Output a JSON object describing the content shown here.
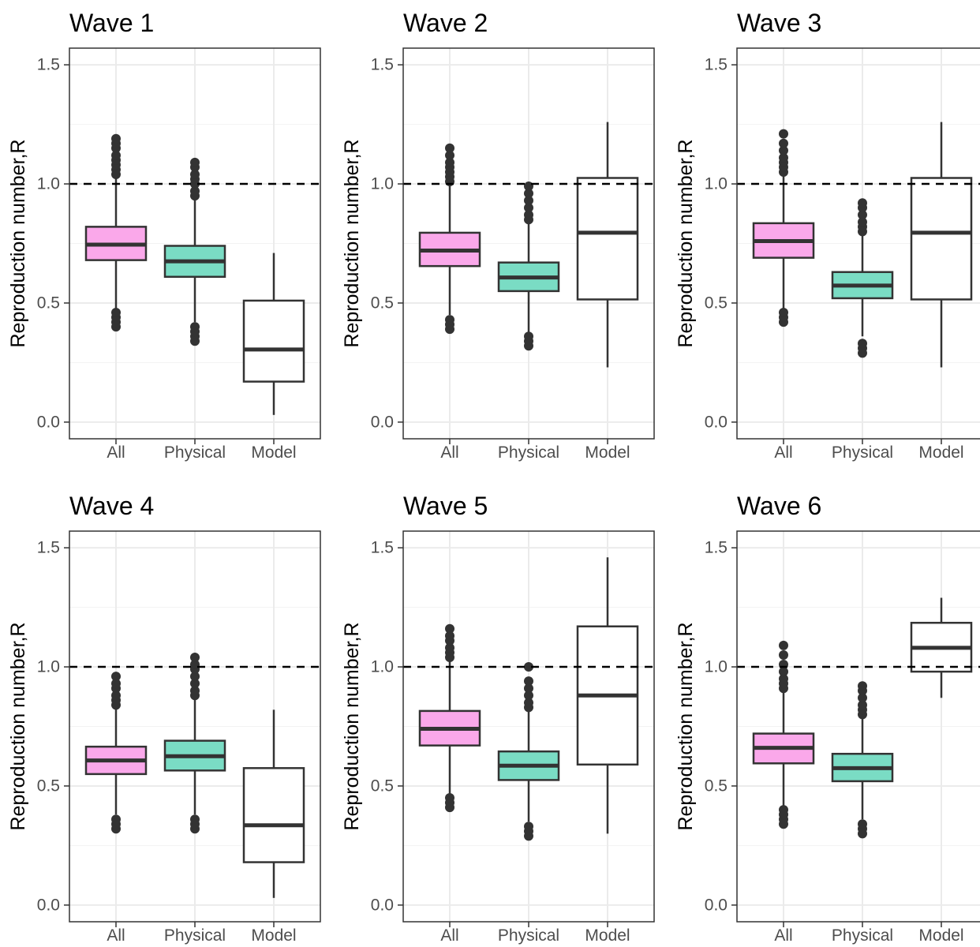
{
  "chart_data": [
    {
      "type": "box",
      "title": "Wave 1",
      "ylabel": "Reproduction number,R",
      "categories": [
        "All",
        "Physical",
        "Model"
      ],
      "yticks": [
        "0.0",
        "0.5",
        "1.0",
        "1.5"
      ],
      "ylim": [
        -0.07,
        1.57
      ],
      "reference_line": 1.0,
      "boxes": [
        {
          "category": "All",
          "color": "#FAA8EA",
          "q1": 0.68,
          "median": 0.745,
          "q3": 0.82,
          "whisker_low": 0.47,
          "whisker_high": 1.03,
          "outliers": [
            0.4,
            0.42,
            0.44,
            0.46,
            1.04,
            1.06,
            1.08,
            1.1,
            1.12,
            1.15,
            1.17,
            1.19
          ]
        },
        {
          "category": "Physical",
          "color": "#7ADCC4",
          "q1": 0.61,
          "median": 0.675,
          "q3": 0.74,
          "whisker_low": 0.42,
          "whisker_high": 0.94,
          "outliers": [
            0.34,
            0.36,
            0.38,
            0.4,
            0.95,
            0.97,
            1.0,
            1.02,
            1.04,
            1.07,
            1.09
          ]
        },
        {
          "category": "Model",
          "color": "#FFFFFF",
          "q1": 0.17,
          "median": 0.305,
          "q3": 0.51,
          "whisker_low": 0.03,
          "whisker_high": 0.71,
          "outliers": []
        }
      ]
    },
    {
      "type": "box",
      "title": "Wave 2",
      "ylabel": "Reproduction number,R",
      "categories": [
        "All",
        "Physical",
        "Model"
      ],
      "yticks": [
        "0.0",
        "0.5",
        "1.0",
        "1.5"
      ],
      "ylim": [
        -0.07,
        1.57
      ],
      "reference_line": 1.0,
      "boxes": [
        {
          "category": "All",
          "color": "#FAA8EA",
          "q1": 0.655,
          "median": 0.72,
          "q3": 0.795,
          "whisker_low": 0.45,
          "whisker_high": 1.0,
          "outliers": [
            0.39,
            0.41,
            0.43,
            1.01,
            1.03,
            1.05,
            1.07,
            1.09,
            1.12,
            1.15
          ]
        },
        {
          "category": "Physical",
          "color": "#7ADCC4",
          "q1": 0.55,
          "median": 0.607,
          "q3": 0.67,
          "whisker_low": 0.37,
          "whisker_high": 0.84,
          "outliers": [
            0.32,
            0.34,
            0.36,
            0.85,
            0.87,
            0.9,
            0.93,
            0.96,
            0.99
          ]
        },
        {
          "category": "Model",
          "color": "#FFFFFF",
          "q1": 0.515,
          "median": 0.795,
          "q3": 1.025,
          "whisker_low": 0.23,
          "whisker_high": 1.26,
          "outliers": []
        }
      ]
    },
    {
      "type": "box",
      "title": "Wave 3",
      "ylabel": "Reproduction number,R",
      "categories": [
        "All",
        "Physical",
        "Model"
      ],
      "yticks": [
        "0.0",
        "0.5",
        "1.0",
        "1.5"
      ],
      "ylim": [
        -0.07,
        1.57
      ],
      "reference_line": 1.0,
      "boxes": [
        {
          "category": "All",
          "color": "#FAA8EA",
          "q1": 0.69,
          "median": 0.76,
          "q3": 0.835,
          "whisker_low": 0.47,
          "whisker_high": 1.04,
          "outliers": [
            0.42,
            0.44,
            0.46,
            1.05,
            1.07,
            1.09,
            1.11,
            1.14,
            1.17,
            1.21
          ]
        },
        {
          "category": "Physical",
          "color": "#7ADCC4",
          "q1": 0.52,
          "median": 0.573,
          "q3": 0.63,
          "whisker_low": 0.36,
          "whisker_high": 0.79,
          "outliers": [
            0.29,
            0.31,
            0.33,
            0.8,
            0.82,
            0.84,
            0.87,
            0.9,
            0.92
          ]
        },
        {
          "category": "Model",
          "color": "#FFFFFF",
          "q1": 0.515,
          "median": 0.795,
          "q3": 1.025,
          "whisker_low": 0.23,
          "whisker_high": 1.26,
          "outliers": []
        }
      ]
    },
    {
      "type": "box",
      "title": "Wave 4",
      "ylabel": "Reproduction number,R",
      "categories": [
        "All",
        "Physical",
        "Model"
      ],
      "yticks": [
        "0.0",
        "0.5",
        "1.0",
        "1.5"
      ],
      "ylim": [
        -0.07,
        1.57
      ],
      "reference_line": 1.0,
      "boxes": [
        {
          "category": "All",
          "color": "#FAA8EA",
          "q1": 0.55,
          "median": 0.607,
          "q3": 0.665,
          "whisker_low": 0.38,
          "whisker_high": 0.83,
          "outliers": [
            0.32,
            0.34,
            0.36,
            0.84,
            0.86,
            0.88,
            0.91,
            0.93,
            0.96
          ]
        },
        {
          "category": "Physical",
          "color": "#7ADCC4",
          "q1": 0.565,
          "median": 0.625,
          "q3": 0.69,
          "whisker_low": 0.38,
          "whisker_high": 0.87,
          "outliers": [
            0.32,
            0.34,
            0.36,
            0.88,
            0.9,
            0.93,
            0.96,
            0.99,
            1.01,
            1.04
          ]
        },
        {
          "category": "Model",
          "color": "#FFFFFF",
          "q1": 0.18,
          "median": 0.335,
          "q3": 0.575,
          "whisker_low": 0.03,
          "whisker_high": 0.82,
          "outliers": []
        }
      ]
    },
    {
      "type": "box",
      "title": "Wave 5",
      "ylabel": "Reproduction number,R",
      "categories": [
        "All",
        "Physical",
        "Model"
      ],
      "yticks": [
        "0.0",
        "0.5",
        "1.0",
        "1.5"
      ],
      "ylim": [
        -0.07,
        1.57
      ],
      "reference_line": 1.0,
      "boxes": [
        {
          "category": "All",
          "color": "#FAA8EA",
          "q1": 0.67,
          "median": 0.74,
          "q3": 0.815,
          "whisker_low": 0.46,
          "whisker_high": 1.03,
          "outliers": [
            0.41,
            0.43,
            0.45,
            1.04,
            1.06,
            1.08,
            1.11,
            1.13,
            1.16
          ]
        },
        {
          "category": "Physical",
          "color": "#7ADCC4",
          "q1": 0.525,
          "median": 0.585,
          "q3": 0.645,
          "whisker_low": 0.35,
          "whisker_high": 0.82,
          "outliers": [
            0.29,
            0.31,
            0.33,
            0.83,
            0.85,
            0.88,
            0.91,
            0.94,
            1.0
          ]
        },
        {
          "category": "Model",
          "color": "#FFFFFF",
          "q1": 0.59,
          "median": 0.88,
          "q3": 1.17,
          "whisker_low": 0.3,
          "whisker_high": 1.46,
          "outliers": []
        }
      ]
    },
    {
      "type": "box",
      "title": "Wave 6",
      "ylabel": "Reproduction number,R",
      "categories": [
        "All",
        "Physical",
        "Model"
      ],
      "yticks": [
        "0.0",
        "0.5",
        "1.0",
        "1.5"
      ],
      "ylim": [
        -0.07,
        1.57
      ],
      "reference_line": 1.0,
      "boxes": [
        {
          "category": "All",
          "color": "#FAA8EA",
          "q1": 0.595,
          "median": 0.66,
          "q3": 0.72,
          "whisker_low": 0.41,
          "whisker_high": 0.9,
          "outliers": [
            0.34,
            0.36,
            0.38,
            0.4,
            0.91,
            0.93,
            0.95,
            0.98,
            1.01,
            1.05,
            1.09
          ]
        },
        {
          "category": "Physical",
          "color": "#7ADCC4",
          "q1": 0.52,
          "median": 0.575,
          "q3": 0.635,
          "whisker_low": 0.36,
          "whisker_high": 0.79,
          "outliers": [
            0.3,
            0.32,
            0.34,
            0.8,
            0.82,
            0.84,
            0.87,
            0.9,
            0.92
          ]
        },
        {
          "category": "Model",
          "color": "#FFFFFF",
          "q1": 0.98,
          "median": 1.08,
          "q3": 1.185,
          "whisker_low": 0.87,
          "whisker_high": 1.29,
          "outliers": []
        }
      ]
    }
  ]
}
